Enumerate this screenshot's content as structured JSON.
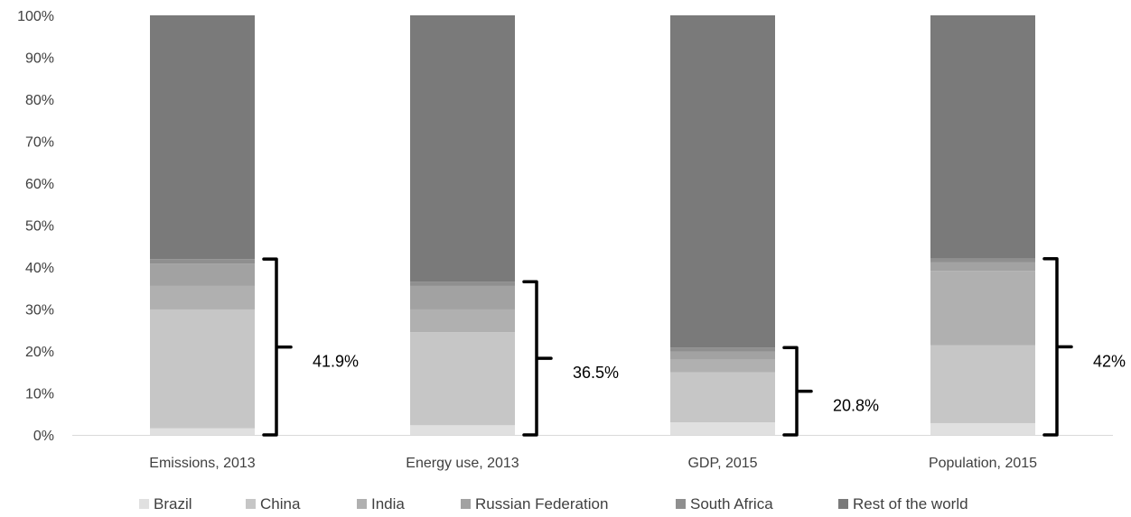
{
  "chart_data": {
    "type": "bar",
    "stacked": true,
    "percent_stacked": true,
    "categories": [
      "Emissions, 2013",
      "Energy use, 2013",
      "GDP, 2015",
      "Population, 2015"
    ],
    "series": [
      {
        "name": "Brazil",
        "values": [
          1.6,
          2.3,
          3.0,
          2.8
        ],
        "color": "#e0e0e0"
      },
      {
        "name": "China",
        "values": [
          28.3,
          22.2,
          11.9,
          18.6
        ],
        "color": "#c6c6c6"
      },
      {
        "name": "India",
        "values": [
          5.6,
          5.4,
          3.0,
          17.7
        ],
        "color": "#b0b0b0"
      },
      {
        "name": "Russian Federation",
        "values": [
          5.3,
          5.6,
          2.0,
          2.0
        ],
        "color": "#a2a2a2"
      },
      {
        "name": "South Africa",
        "values": [
          1.1,
          1.0,
          0.9,
          0.9
        ],
        "color": "#8f8f8f"
      },
      {
        "name": "Rest of the world",
        "values": [
          58.1,
          63.5,
          79.2,
          58.0
        ],
        "color": "#7a7a7a"
      }
    ],
    "annotations": [
      {
        "category": "Emissions, 2013",
        "text": "41.9%",
        "value": 41.9
      },
      {
        "category": "Energy use, 2013",
        "text": "36.5%",
        "value": 36.5
      },
      {
        "category": "GDP, 2015",
        "text": "20.8%",
        "value": 20.8
      },
      {
        "category": "Population, 2015",
        "text": "42%",
        "value": 42
      }
    ],
    "y_ticks": [
      "0%",
      "10%",
      "20%",
      "30%",
      "40%",
      "50%",
      "60%",
      "70%",
      "80%",
      "90%",
      "100%"
    ],
    "ylim": [
      0,
      100
    ],
    "title": "",
    "xlabel": "",
    "ylabel": "",
    "grid": false,
    "legend_position": "bottom"
  }
}
